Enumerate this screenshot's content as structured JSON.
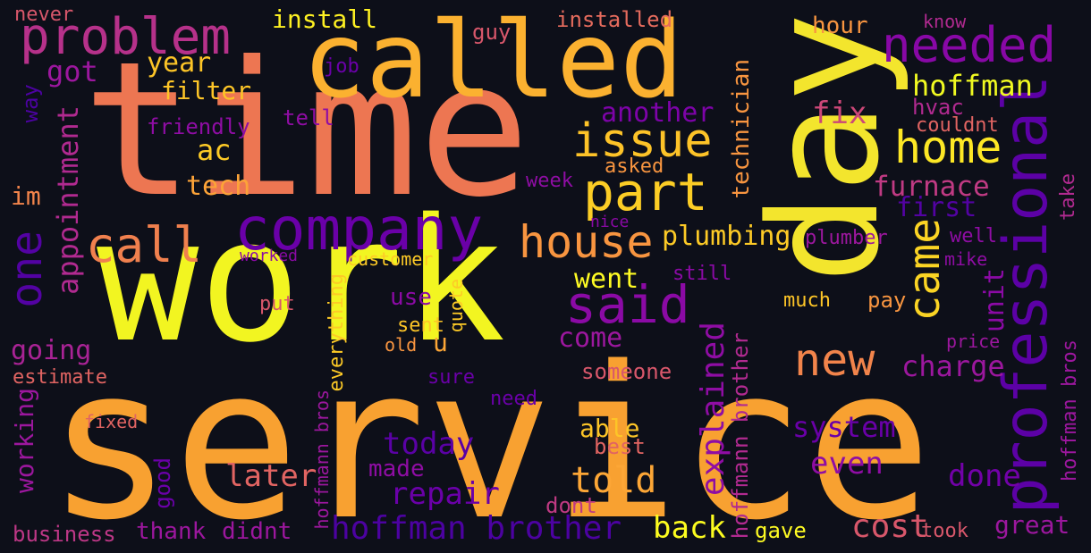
{
  "words": [
    {
      "text": "service",
      "color": "#f8a131"
    },
    {
      "text": "time",
      "color": "#ed7652"
    },
    {
      "text": "work",
      "color": "#f2f521"
    },
    {
      "text": "called",
      "color": "#fbb130"
    },
    {
      "text": "day",
      "color": "#f3e52d"
    },
    {
      "text": "company",
      "color": "#6a00a8"
    },
    {
      "text": "problem",
      "color": "#b6318a"
    },
    {
      "text": "professional",
      "color": "#5c01a6"
    },
    {
      "text": "needed",
      "color": "#8808a6"
    },
    {
      "text": "issue",
      "color": "#fdc328"
    },
    {
      "text": "part",
      "color": "#fccd25"
    },
    {
      "text": "home",
      "color": "#fde725"
    },
    {
      "text": "house",
      "color": "#f89540"
    },
    {
      "text": "said",
      "color": "#8b0aa5"
    },
    {
      "text": "new",
      "color": "#f2844b"
    },
    {
      "text": "call",
      "color": "#f0804e"
    },
    {
      "text": "one",
      "color": "#5302a3"
    },
    {
      "text": "came",
      "color": "#fbd424"
    },
    {
      "text": "hoffman brother",
      "color": "#4c02a1"
    },
    {
      "text": "hoffman",
      "color": "#f0f921"
    },
    {
      "text": "appointment",
      "color": "#b12a90"
    },
    {
      "text": "explained",
      "color": "#8f0da4"
    },
    {
      "text": "repair",
      "color": "#6a00a8"
    },
    {
      "text": "told",
      "color": "#fca636"
    },
    {
      "text": "today",
      "color": "#5a01a5"
    },
    {
      "text": "furnace",
      "color": "#c03a83"
    },
    {
      "text": "fix",
      "color": "#cc4778"
    },
    {
      "text": "another",
      "color": "#7d03a8"
    },
    {
      "text": "first",
      "color": "#5302a3"
    },
    {
      "text": "charge",
      "color": "#9c179e"
    },
    {
      "text": "plumbing",
      "color": "#fdca26"
    },
    {
      "text": "cost",
      "color": "#d8576b"
    },
    {
      "text": "even",
      "color": "#8f0da4"
    },
    {
      "text": "done",
      "color": "#7201a8"
    },
    {
      "text": "system",
      "color": "#6a00a8"
    },
    {
      "text": "later",
      "color": "#e16462"
    },
    {
      "text": "back",
      "color": "#fcfc1f"
    },
    {
      "text": "unit",
      "color": "#8b0aa5"
    },
    {
      "text": "come",
      "color": "#9c179e"
    },
    {
      "text": "went",
      "color": "#fdfa23"
    },
    {
      "text": "got",
      "color": "#9c179e"
    },
    {
      "text": "year",
      "color": "#fdc527"
    },
    {
      "text": "ac",
      "color": "#fdca26"
    },
    {
      "text": "tech",
      "color": "#fca338"
    },
    {
      "text": "filter",
      "color": "#fdc527"
    },
    {
      "text": "going",
      "color": "#a92395"
    },
    {
      "text": "working",
      "color": "#9c179e"
    },
    {
      "text": "great",
      "color": "#9c179e"
    },
    {
      "text": "thank",
      "color": "#9c179e"
    },
    {
      "text": "didnt",
      "color": "#9c179e"
    },
    {
      "text": "business",
      "color": "#bd3786"
    },
    {
      "text": "technician",
      "color": "#f89540"
    },
    {
      "text": "hoffmann brother",
      "color": "#b12a90"
    },
    {
      "text": "install",
      "color": "#fdf022"
    },
    {
      "text": "installed",
      "color": "#e56b5d"
    },
    {
      "text": "hour",
      "color": "#f89540"
    },
    {
      "text": "hvac",
      "color": "#b12a90"
    },
    {
      "text": "couldnt",
      "color": "#e16462"
    },
    {
      "text": "im",
      "color": "#f2844b"
    },
    {
      "text": "way",
      "color": "#4c02a1"
    },
    {
      "text": "guy",
      "color": "#d8576b"
    },
    {
      "text": "never",
      "color": "#d8576b"
    },
    {
      "text": "job",
      "color": "#6a00a8"
    },
    {
      "text": "friendly",
      "color": "#8f0da4"
    },
    {
      "text": "tell",
      "color": "#8f0da4"
    },
    {
      "text": "asked",
      "color": "#f89540"
    },
    {
      "text": "week",
      "color": "#8f0da4"
    },
    {
      "text": "nice",
      "color": "#8b0aa5"
    },
    {
      "text": "plumber",
      "color": "#9c179e"
    },
    {
      "text": "well",
      "color": "#8f0da4"
    },
    {
      "text": "mike",
      "color": "#8f0da4"
    },
    {
      "text": "know",
      "color": "#b12a90"
    },
    {
      "text": "take",
      "color": "#b12a90"
    },
    {
      "text": "still",
      "color": "#8b0aa5"
    },
    {
      "text": "much",
      "color": "#fdc527"
    },
    {
      "text": "pay",
      "color": "#f89540"
    },
    {
      "text": "price",
      "color": "#9c179e"
    },
    {
      "text": "hoffman bros",
      "color": "#9c179e"
    },
    {
      "text": "worked",
      "color": "#8b0aa5"
    },
    {
      "text": "customer",
      "color": "#fdca26"
    },
    {
      "text": "use",
      "color": "#8b0aa5"
    },
    {
      "text": "put",
      "color": "#d8576b"
    },
    {
      "text": "sent",
      "color": "#fdc527"
    },
    {
      "text": "u",
      "color": "#fca636"
    },
    {
      "text": "old",
      "color": "#f89540"
    },
    {
      "text": "quote",
      "color": "#fdca26"
    },
    {
      "text": "everything",
      "color": "#fdca26"
    },
    {
      "text": "estimate",
      "color": "#e16462"
    },
    {
      "text": "sure",
      "color": "#6a00a8"
    },
    {
      "text": "need",
      "color": "#6a00a8"
    },
    {
      "text": "someone",
      "color": "#d8576b"
    },
    {
      "text": "fixed",
      "color": "#e16462"
    },
    {
      "text": "able",
      "color": "#fdc527"
    },
    {
      "text": "best",
      "color": "#e16462"
    },
    {
      "text": "made",
      "color": "#8f0da4"
    },
    {
      "text": "dont",
      "color": "#c03a83"
    },
    {
      "text": "good",
      "color": "#6a00a8"
    },
    {
      "text": "hoffmann bros",
      "color": "#9c179e"
    },
    {
      "text": "gave",
      "color": "#fdfa23"
    },
    {
      "text": "took",
      "color": "#d8576b"
    }
  ]
}
